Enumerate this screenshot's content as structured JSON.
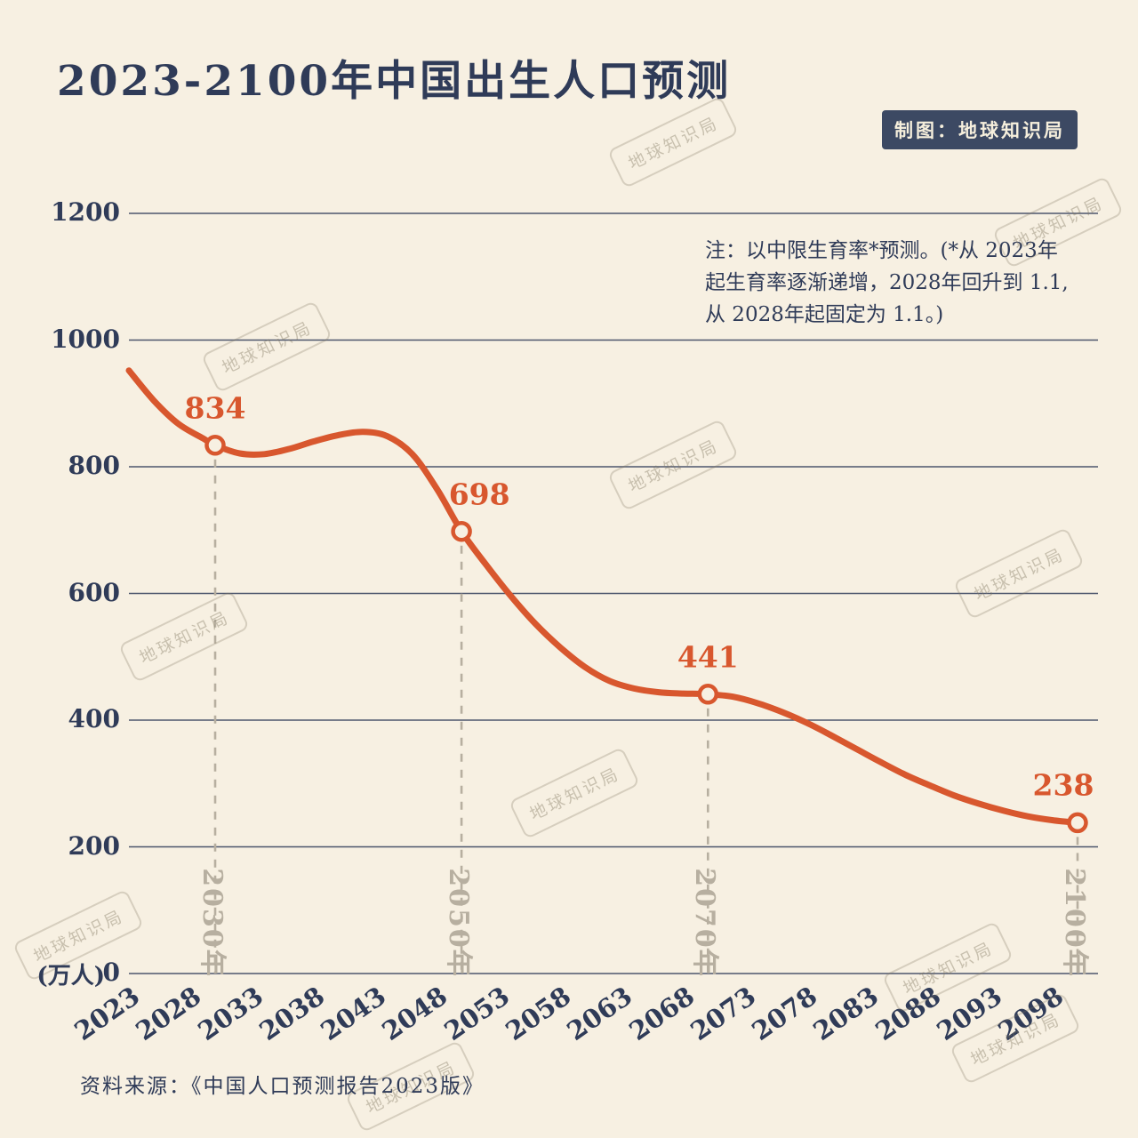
{
  "page": {
    "title": "2023-2100年中国出生人口预测",
    "credit_badge": "制图：地球知识局",
    "note_lines": [
      "注：以中限生育率*预测。(*从 2023年",
      "起生育率逐渐递增，2028年回升到 1.1,",
      "从 2028年起固定为 1.1。)"
    ],
    "source": "资料来源：《中国人口预测报告2023版》",
    "unit_label": "(万人)",
    "watermark": "地球知识局"
  },
  "colors": {
    "bg": "#f7f0e2",
    "ink": "#2f3b58",
    "line": "#d8572e",
    "dashed": "#b7afa0",
    "badge-bg": "#3c4963",
    "badge-text": "#f6efdc"
  },
  "chart_data": {
    "type": "line",
    "title": "2023-2100年中国出生人口预测",
    "xlabel": "",
    "ylabel": "(万人)",
    "ylim": [
      0,
      1200
    ],
    "xlim": [
      2023,
      2100
    ],
    "yticks": [
      0,
      200,
      400,
      600,
      800,
      1000,
      1200
    ],
    "xticks": [
      2023,
      2028,
      2033,
      2038,
      2043,
      2048,
      2053,
      2058,
      2063,
      2068,
      2073,
      2078,
      2083,
      2088,
      2093,
      2098
    ],
    "grid": "horizontal",
    "legend": "none",
    "series": [
      {
        "points": [
          [
            2023,
            952
          ],
          [
            2025,
            905
          ],
          [
            2027,
            868
          ],
          [
            2029,
            845
          ],
          [
            2030,
            834
          ],
          [
            2032,
            821
          ],
          [
            2034,
            820
          ],
          [
            2036,
            828
          ],
          [
            2038,
            840
          ],
          [
            2040,
            850
          ],
          [
            2042,
            855
          ],
          [
            2044,
            848
          ],
          [
            2046,
            820
          ],
          [
            2048,
            765
          ],
          [
            2050,
            698
          ],
          [
            2052,
            645
          ],
          [
            2054,
            596
          ],
          [
            2056,
            552
          ],
          [
            2058,
            515
          ],
          [
            2060,
            484
          ],
          [
            2062,
            462
          ],
          [
            2064,
            450
          ],
          [
            2066,
            444
          ],
          [
            2068,
            442
          ],
          [
            2070,
            441
          ],
          [
            2072,
            437
          ],
          [
            2074,
            427
          ],
          [
            2076,
            413
          ],
          [
            2078,
            396
          ],
          [
            2080,
            376
          ],
          [
            2082,
            355
          ],
          [
            2084,
            334
          ],
          [
            2086,
            314
          ],
          [
            2088,
            297
          ],
          [
            2090,
            281
          ],
          [
            2092,
            268
          ],
          [
            2094,
            257
          ],
          [
            2096,
            248
          ],
          [
            2098,
            242
          ],
          [
            2100,
            238
          ]
        ]
      }
    ],
    "annotations": [
      {
        "year": 2030,
        "value": 834,
        "label": "834",
        "axis_label": "2030年"
      },
      {
        "year": 2050,
        "value": 698,
        "label": "698",
        "axis_label": "2050年"
      },
      {
        "year": 2070,
        "value": 441,
        "label": "441",
        "axis_label": "2070年"
      },
      {
        "year": 2100,
        "value": 238,
        "label": "238",
        "axis_label": "2100年"
      }
    ]
  }
}
